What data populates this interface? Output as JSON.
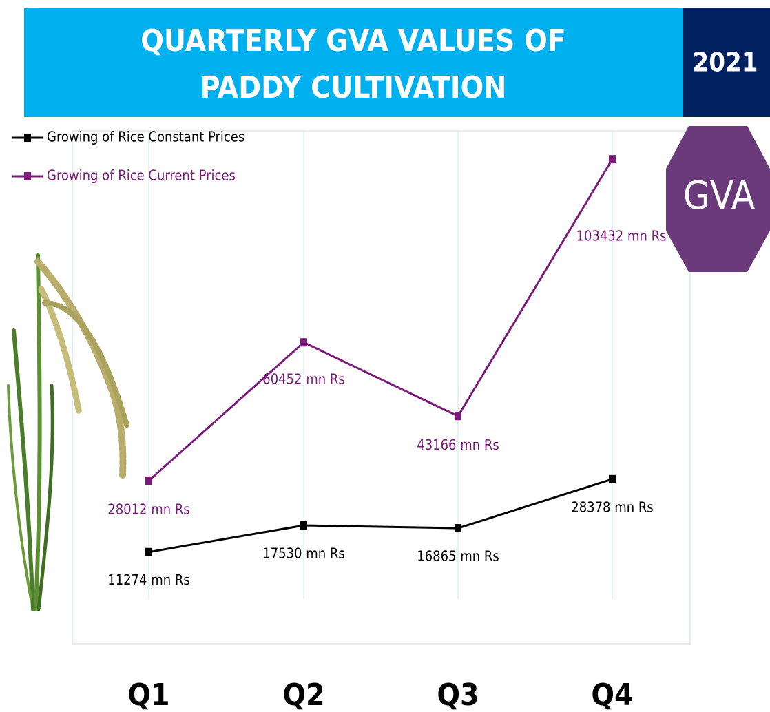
{
  "chart_data": {
    "type": "line",
    "title_lines": [
      "QUARTERLY GVA VALUES OF",
      "PADDY CULTIVATION"
    ],
    "year": "2021",
    "badge": "GVA",
    "categories": [
      "Q1",
      "Q2",
      "Q3",
      "Q4"
    ],
    "series": [
      {
        "name": "Growing of Rice Constant Prices",
        "color": "#000000",
        "values": [
          11274,
          17530,
          16865,
          28378
        ],
        "value_labels": [
          "11274 mn Rs",
          "17530 mn Rs",
          "16865 mn Rs",
          "28378 mn Rs"
        ]
      },
      {
        "name": "Growing of Rice Current Prices",
        "color": "#7a1a7a",
        "values": [
          28012,
          60452,
          43166,
          103432
        ],
        "value_labels": [
          "28012 mn Rs",
          "60452 mn Rs",
          "43166 mn Rs",
          "103432 mn Rs"
        ]
      }
    ],
    "ylim": [
      0,
      110000
    ],
    "grid": true,
    "legend": "top-left"
  }
}
